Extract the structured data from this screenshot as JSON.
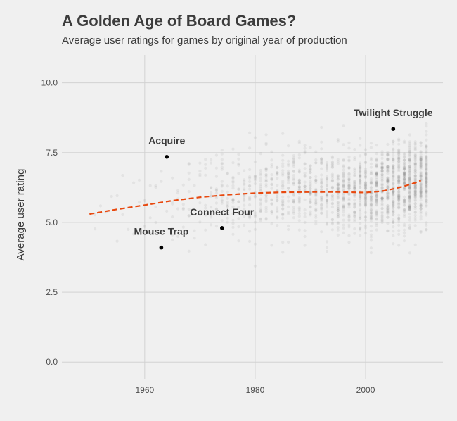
{
  "chart_data": {
    "type": "scatter",
    "title": "A Golden Age of Board Games?",
    "subtitle": "Average user ratings for games by original year of production",
    "xlabel": "",
    "ylabel": "Average user rating",
    "xlim": [
      1945,
      2014
    ],
    "ylim": [
      -0.6,
      11.0
    ],
    "x_ticks": [
      1960,
      1980,
      2000
    ],
    "y_ticks": [
      0.0,
      2.5,
      5.0,
      7.5,
      10.0
    ],
    "x_tick_labels": [
      "1960",
      "1980",
      "2000"
    ],
    "y_tick_labels": [
      "0.0",
      "2.5",
      "5.0",
      "7.5",
      "10.0"
    ],
    "grid": true,
    "colors": {
      "background": "#f0f0f0",
      "grid": "#d2d2d2",
      "points": "#8c8c8c",
      "trend": "#e8490f",
      "highlight": "#000000",
      "text": "#3c3c3c"
    },
    "point_distribution": [
      {
        "year": 1950,
        "n": 2,
        "mean": 5.6,
        "sd": 0.8
      },
      {
        "year": 1952,
        "n": 2,
        "mean": 5.7,
        "sd": 0.8
      },
      {
        "year": 1954,
        "n": 3,
        "mean": 5.6,
        "sd": 0.8
      },
      {
        "year": 1956,
        "n": 3,
        "mean": 5.7,
        "sd": 0.8
      },
      {
        "year": 1958,
        "n": 4,
        "mean": 5.7,
        "sd": 0.8
      },
      {
        "year": 1960,
        "n": 5,
        "mean": 5.8,
        "sd": 0.8
      },
      {
        "year": 1962,
        "n": 6,
        "mean": 5.8,
        "sd": 0.8
      },
      {
        "year": 1964,
        "n": 8,
        "mean": 5.8,
        "sd": 0.8
      },
      {
        "year": 1966,
        "n": 10,
        "mean": 5.8,
        "sd": 0.8
      },
      {
        "year": 1968,
        "n": 12,
        "mean": 5.9,
        "sd": 0.8
      },
      {
        "year": 1970,
        "n": 18,
        "mean": 5.9,
        "sd": 0.75
      },
      {
        "year": 1972,
        "n": 26,
        "mean": 6.0,
        "sd": 0.75
      },
      {
        "year": 1974,
        "n": 30,
        "mean": 6.0,
        "sd": 0.75
      },
      {
        "year": 1976,
        "n": 34,
        "mean": 6.0,
        "sd": 0.75
      },
      {
        "year": 1978,
        "n": 38,
        "mean": 6.05,
        "sd": 0.75
      },
      {
        "year": 1980,
        "n": 42,
        "mean": 6.05,
        "sd": 0.75
      },
      {
        "year": 1982,
        "n": 46,
        "mean": 6.1,
        "sd": 0.75
      },
      {
        "year": 1984,
        "n": 50,
        "mean": 6.1,
        "sd": 0.75
      },
      {
        "year": 1986,
        "n": 55,
        "mean": 6.1,
        "sd": 0.75
      },
      {
        "year": 1988,
        "n": 60,
        "mean": 6.1,
        "sd": 0.75
      },
      {
        "year": 1990,
        "n": 65,
        "mean": 6.1,
        "sd": 0.75
      },
      {
        "year": 1992,
        "n": 72,
        "mean": 6.1,
        "sd": 0.75
      },
      {
        "year": 1994,
        "n": 80,
        "mean": 6.1,
        "sd": 0.75
      },
      {
        "year": 1996,
        "n": 90,
        "mean": 6.1,
        "sd": 0.75
      },
      {
        "year": 1998,
        "n": 100,
        "mean": 6.1,
        "sd": 0.75
      },
      {
        "year": 2000,
        "n": 115,
        "mean": 6.05,
        "sd": 0.75
      },
      {
        "year": 2002,
        "n": 130,
        "mean": 6.1,
        "sd": 0.75
      },
      {
        "year": 2004,
        "n": 150,
        "mean": 6.2,
        "sd": 0.75
      },
      {
        "year": 2006,
        "n": 170,
        "mean": 6.3,
        "sd": 0.75
      },
      {
        "year": 2008,
        "n": 180,
        "mean": 6.4,
        "sd": 0.75
      },
      {
        "year": 2010,
        "n": 180,
        "mean": 6.5,
        "sd": 0.75
      }
    ],
    "trend_line": {
      "x": [
        1950,
        1955,
        1960,
        1965,
        1970,
        1975,
        1980,
        1985,
        1990,
        1995,
        2000,
        2003,
        2005,
        2007,
        2009,
        2010
      ],
      "y": [
        5.3,
        5.47,
        5.62,
        5.78,
        5.9,
        5.99,
        6.05,
        6.08,
        6.09,
        6.09,
        6.07,
        6.12,
        6.2,
        6.3,
        6.42,
        6.5
      ]
    },
    "highlights": [
      {
        "name": "Acquire",
        "x": 1964,
        "y": 7.35
      },
      {
        "name": "Twilight Struggle",
        "x": 2005,
        "y": 8.35
      },
      {
        "name": "Connect Four",
        "x": 1974,
        "y": 4.8
      },
      {
        "name": "Mouse Trap",
        "x": 1963,
        "y": 4.1
      }
    ]
  }
}
